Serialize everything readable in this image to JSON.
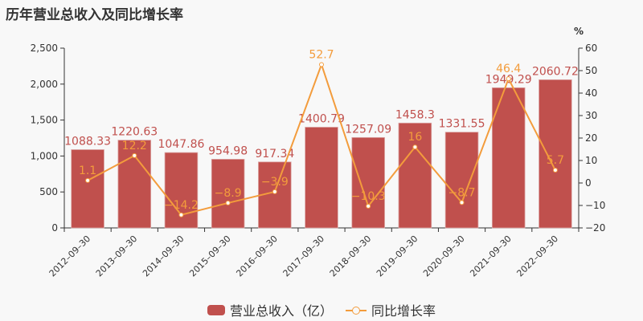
{
  "title": "历年营业总收入及同比增长率",
  "legend": {
    "bar_label": "营业总收入（亿）",
    "line_label": "同比增长率"
  },
  "colors": {
    "bar": "#c0504d",
    "line": "#f39c3c",
    "bar_label": "#c0504d",
    "line_label": "#f39c3c",
    "axis": "#333333"
  },
  "chart_data": {
    "type": "bar+line",
    "title": "历年营业总收入及同比增长率",
    "categories": [
      "2012-09-30",
      "2013-09-30",
      "2014-09-30",
      "2015-09-30",
      "2016-09-30",
      "2017-09-30",
      "2018-09-30",
      "2019-09-30",
      "2020-09-30",
      "2021-09-30",
      "2022-09-30"
    ],
    "series": [
      {
        "name": "营业总收入（亿）",
        "type": "bar",
        "axis": "left",
        "values": [
          1088.33,
          1220.63,
          1047.86,
          954.98,
          917.34,
          1400.79,
          1257.09,
          1458.3,
          1331.55,
          1949.29,
          2060.72
        ]
      },
      {
        "name": "同比增长率",
        "type": "line",
        "axis": "right",
        "values": [
          1.1,
          12.2,
          -14.2,
          -8.9,
          -3.9,
          52.7,
          -10.3,
          16,
          -8.7,
          46.4,
          5.7
        ]
      }
    ],
    "y_left": {
      "ticks": [
        "0",
        "500",
        "1,000",
        "1,500",
        "2,000",
        "2,500"
      ],
      "range": [
        0,
        2500
      ],
      "label": ""
    },
    "y_right": {
      "ticks": [
        "-20",
        "-10",
        "0",
        "10",
        "20",
        "30",
        "40",
        "50",
        "60"
      ],
      "range": [
        -20,
        60
      ],
      "label": "%"
    },
    "grid": false,
    "legend_position": "bottom"
  }
}
